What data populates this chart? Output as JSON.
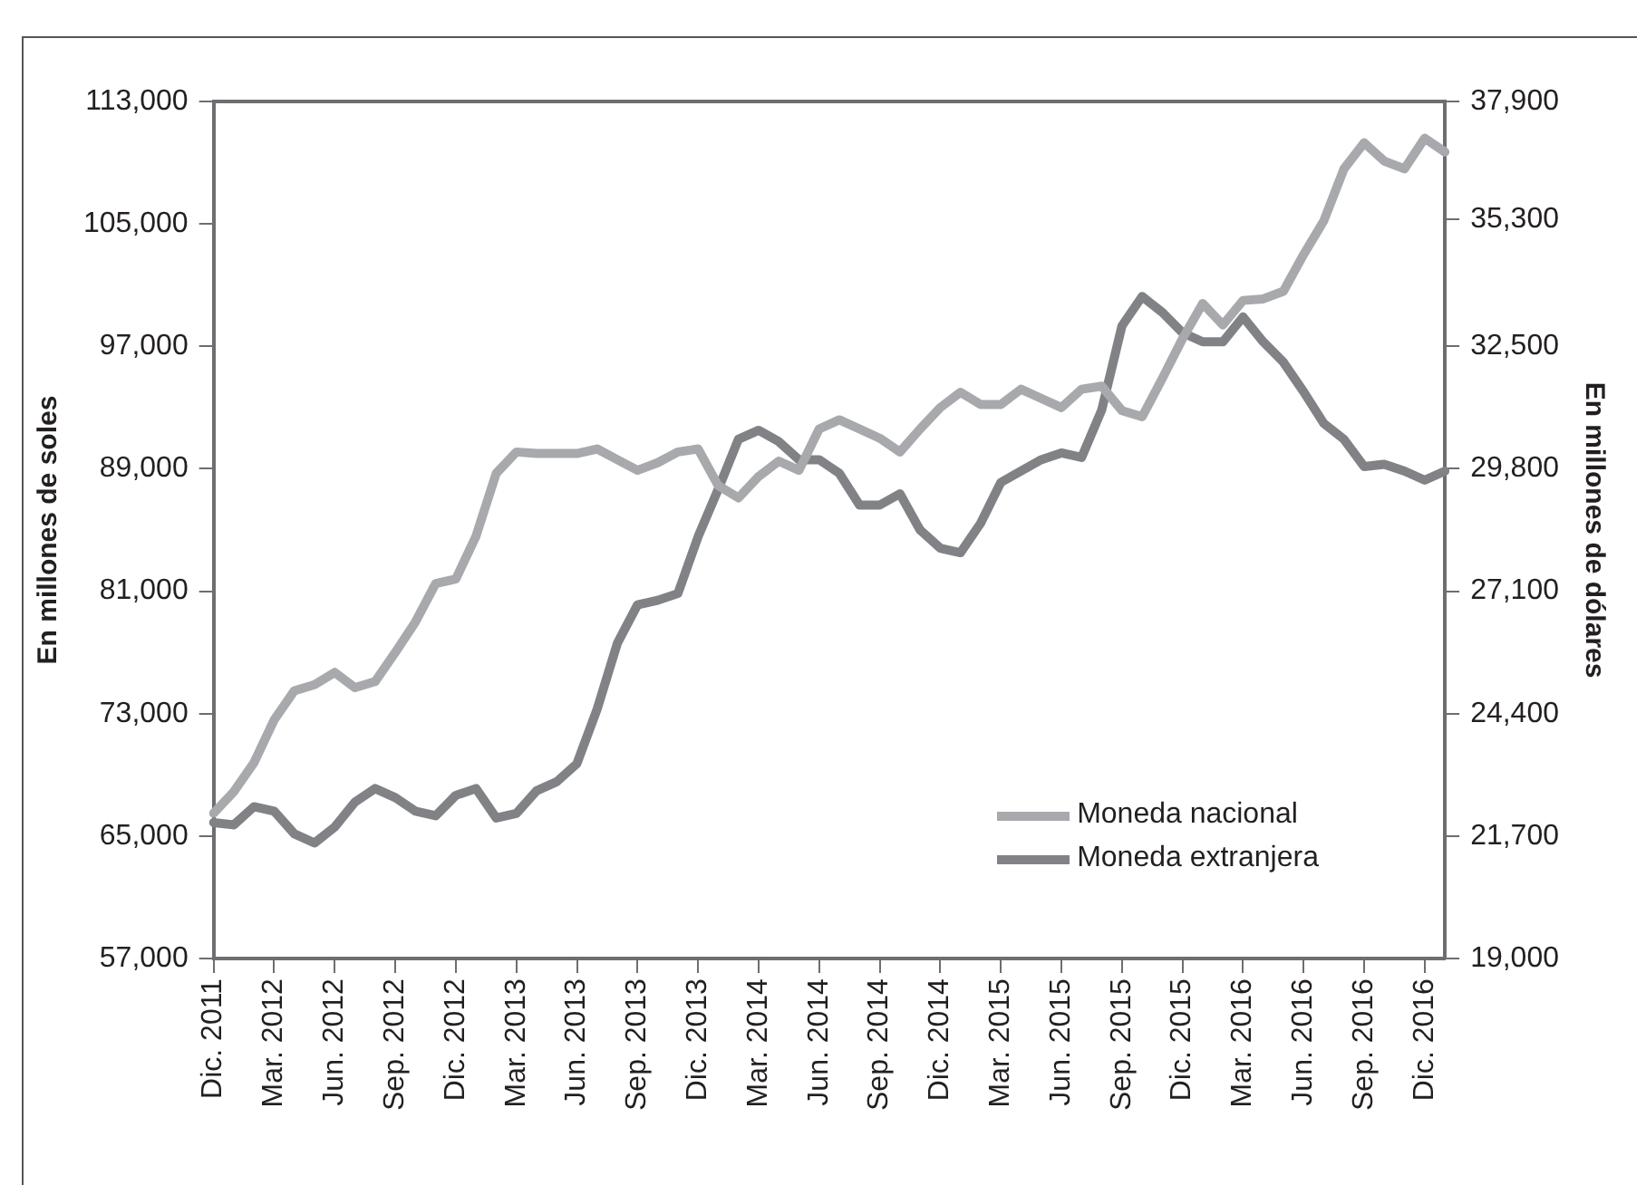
{
  "chart_data": {
    "type": "line",
    "categories": [
      "Dic. 2011",
      null,
      null,
      "Mar. 2012",
      null,
      null,
      "Jun. 2012",
      null,
      null,
      "Sep. 2012",
      null,
      null,
      "Dic. 2012",
      null,
      null,
      "Mar. 2013",
      null,
      null,
      "Jun. 2013",
      null,
      null,
      "Sep. 2013",
      null,
      null,
      "Dic. 2013",
      null,
      null,
      "Mar. 2014",
      null,
      null,
      "Jun. 2014",
      null,
      null,
      "Sep. 2014",
      null,
      null,
      "Dic. 2014",
      null,
      null,
      "Mar. 2015",
      null,
      null,
      "Jun. 2015",
      null,
      null,
      "Sep. 2015",
      null,
      null,
      "Dic. 2015",
      null,
      null,
      "Mar. 2016",
      null,
      null,
      "Jun. 2016",
      null,
      null,
      "Sep. 2016",
      null,
      null,
      "Dic. 2016",
      null
    ],
    "series": [
      {
        "name": "Moneda nacional",
        "color": "#a7a9ac",
        "values": [
          66500,
          67900,
          69800,
          72600,
          74500,
          74900,
          75700,
          74700,
          75100,
          77000,
          79000,
          81500,
          81800,
          84600,
          88700,
          90100,
          90000,
          90000,
          90000,
          90300,
          89600,
          88900,
          89400,
          90100,
          90300,
          87900,
          87100,
          88500,
          89500,
          88900,
          91600,
          92200,
          91600,
          91000,
          90100,
          91600,
          93000,
          94000,
          93200,
          93200,
          94200,
          93600,
          93000,
          94200,
          94400,
          92800,
          92400,
          94900,
          97500,
          99800,
          98400,
          100000,
          100100,
          100600,
          103000,
          105200,
          108600,
          110300,
          109100,
          108600,
          110600,
          109700
        ]
      },
      {
        "name": "Moneda extranjera",
        "color": "#808285",
        "axis": "y2",
        "values": [
          22000,
          21950,
          22350,
          22250,
          21750,
          21550,
          21900,
          22450,
          22750,
          22550,
          22250,
          22150,
          22600,
          22750,
          22100,
          22200,
          22700,
          22900,
          23300,
          24500,
          25950,
          26800,
          26900,
          27050,
          28300,
          29350,
          30450,
          30650,
          30400,
          30000,
          30000,
          29700,
          29000,
          29000,
          29250,
          28450,
          28050,
          27950,
          28600,
          29500,
          29750,
          30000,
          30150,
          30050,
          31100,
          32950,
          33600,
          33250,
          32800,
          32600,
          32600,
          33150,
          32600,
          32150,
          31500,
          30800,
          30450,
          29850,
          29900,
          29750,
          29550,
          29750
        ]
      }
    ],
    "ylabel": "En millones de soles",
    "y2label": "En millones de dólares",
    "ylim": [
      57000,
      113000
    ],
    "yticks": [
      {
        "value": 57000,
        "label": "57,000"
      },
      {
        "value": 65000,
        "label": "65,000"
      },
      {
        "value": 73000,
        "label": "73,000"
      },
      {
        "value": 81000,
        "label": "81,000"
      },
      {
        "value": 89000,
        "label": "89,000"
      },
      {
        "value": 97000,
        "label": "97,000"
      },
      {
        "value": 105000,
        "label": "105,000"
      },
      {
        "value": 113000,
        "label": "113,000"
      }
    ],
    "y2lim": [
      19000,
      37900
    ],
    "y2ticks": [
      {
        "value": 19000,
        "label": "19,000"
      },
      {
        "value": 21700,
        "label": "21,700"
      },
      {
        "value": 24400,
        "label": "24,400"
      },
      {
        "value": 27100,
        "label": "27,100"
      },
      {
        "value": 29800,
        "label": "29,800"
      },
      {
        "value": 32500,
        "label": "32,500"
      },
      {
        "value": 35300,
        "label": "35,300"
      },
      {
        "value": 37900,
        "label": "37,900"
      }
    ],
    "grid": false,
    "legend": "bottom right",
    "marker": "none",
    "line_style": "solid"
  }
}
